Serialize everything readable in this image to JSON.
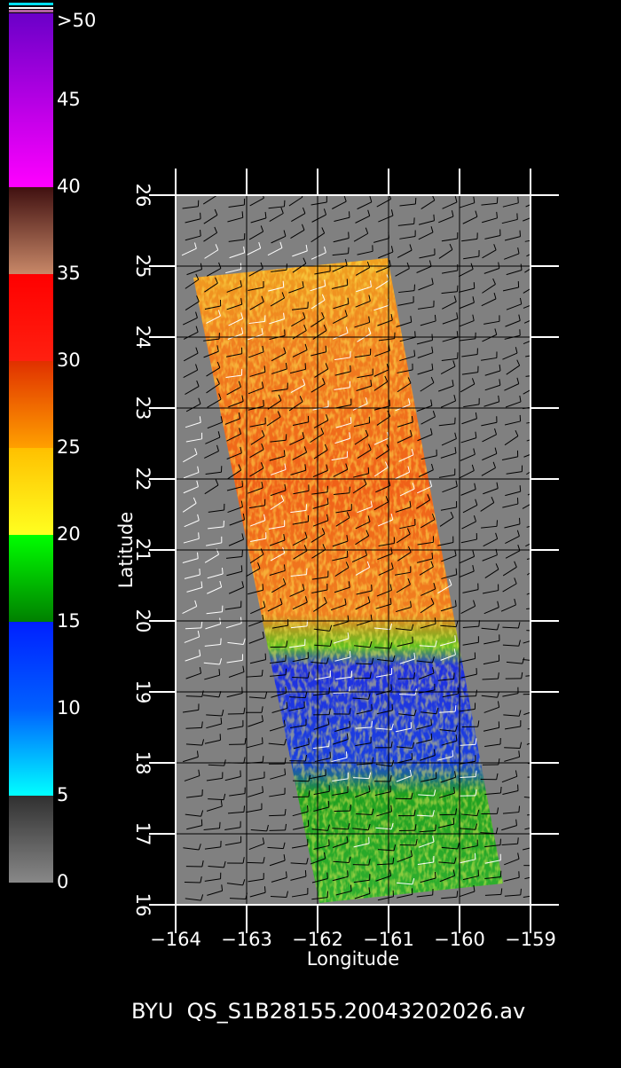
{
  "chart_data": {
    "type": "map",
    "xlabel": "Longitude",
    "ylabel": "Latitude",
    "xlim": [
      -164,
      -159
    ],
    "xticks": [
      {
        "value": -164,
        "label": "−164"
      },
      {
        "value": -163,
        "label": "−163"
      },
      {
        "value": -162,
        "label": "−162"
      },
      {
        "value": -161,
        "label": "−161"
      },
      {
        "value": -160,
        "label": "−160"
      },
      {
        "value": -159,
        "label": "−159"
      }
    ],
    "ylim": [
      16,
      26
    ],
    "yticks": [
      16,
      17,
      18,
      19,
      20,
      21,
      22,
      23,
      24,
      25,
      26
    ],
    "grid": true,
    "colorbar": {
      "lim": [
        0,
        50
      ],
      "ticks": [
        0,
        5,
        10,
        15,
        20,
        25,
        30,
        35,
        40,
        45,
        {
          "value": 50,
          "label": ">50"
        }
      ]
    },
    "footer": "BYU  QS_S1B28155.20043202026.av"
  }
}
